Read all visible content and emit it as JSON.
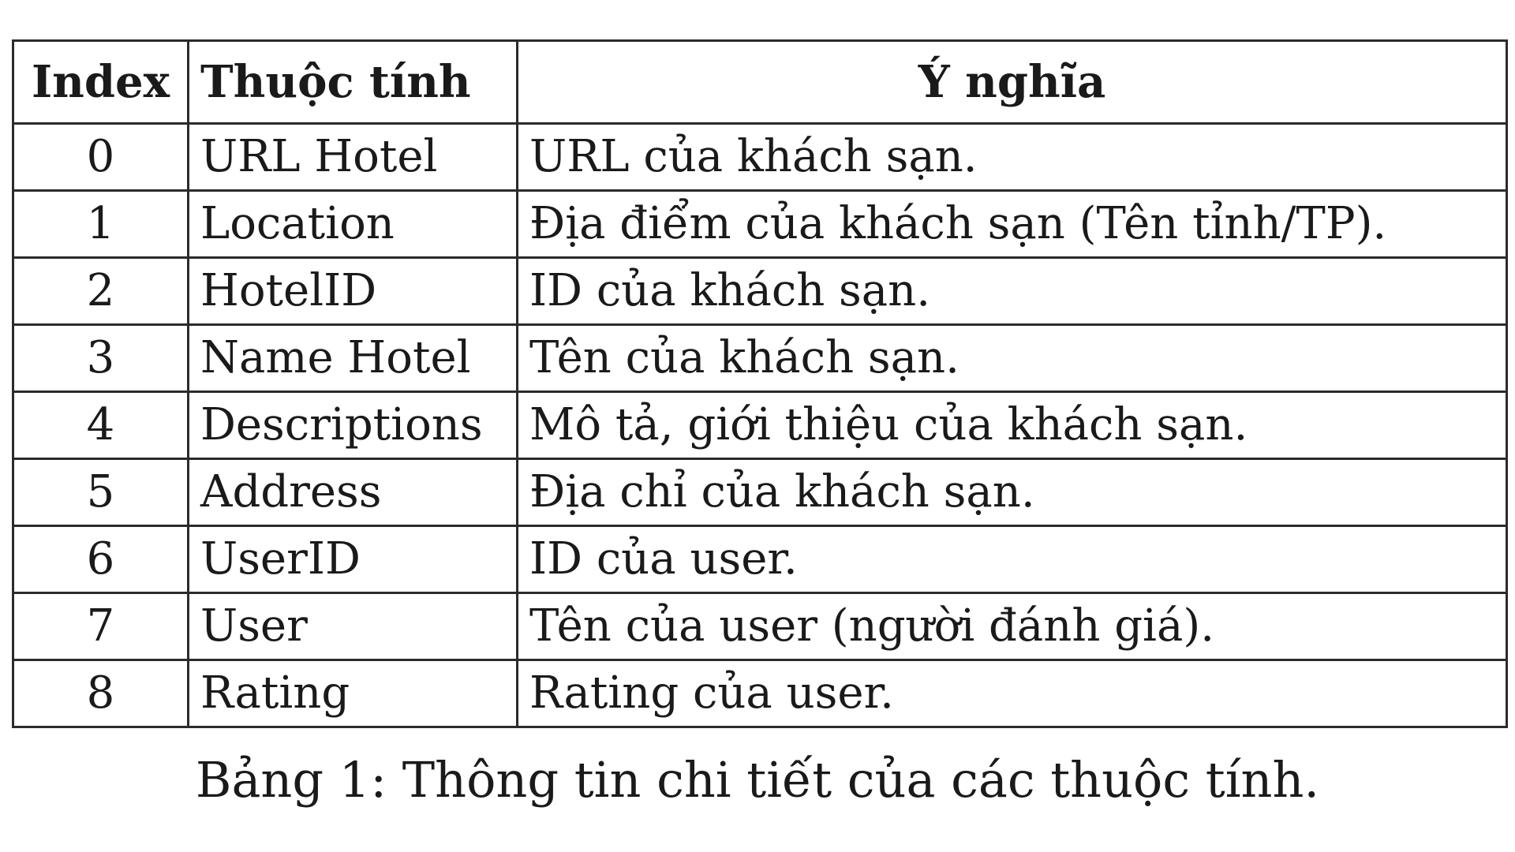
{
  "table": {
    "headers": [
      "Index",
      "Thuộc tính",
      "Ý nghĩa"
    ],
    "rows": [
      {
        "index": "0",
        "attribute": "URL Hotel",
        "meaning": "URL của khách sạn."
      },
      {
        "index": "1",
        "attribute": "Location",
        "meaning": "Địa điểm của khách sạn (Tên tỉnh/TP)."
      },
      {
        "index": "2",
        "attribute": "HotelID",
        "meaning": "ID của khách sạn."
      },
      {
        "index": "3",
        "attribute": "Name Hotel",
        "meaning": "Tên của khách sạn."
      },
      {
        "index": "4",
        "attribute": "Descriptions",
        "meaning": "Mô tả, giới thiệu của khách sạn."
      },
      {
        "index": "5",
        "attribute": "Address",
        "meaning": "Địa chỉ của khách sạn."
      },
      {
        "index": "6",
        "attribute": "UserID",
        "meaning": "ID của user."
      },
      {
        "index": "7",
        "attribute": "User",
        "meaning": "Tên của user (người đánh giá)."
      },
      {
        "index": "8",
        "attribute": "Rating",
        "meaning": "Rating của user."
      }
    ]
  },
  "caption": "Bảng 1: Thông tin chi tiết của các thuộc tính."
}
